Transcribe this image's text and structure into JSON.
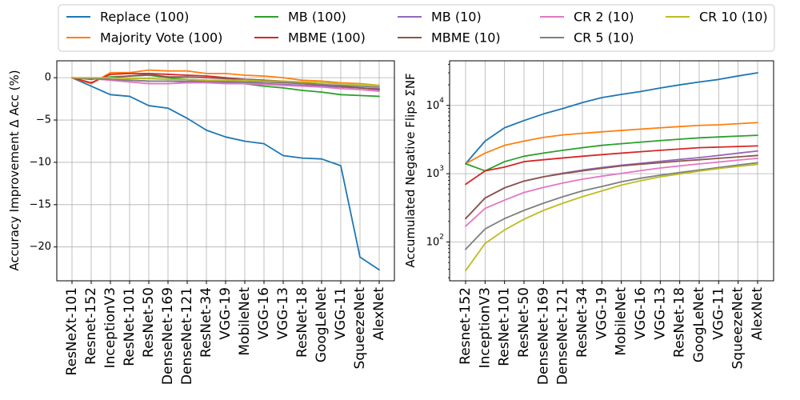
{
  "legend": [
    {
      "label": "Replace (100)",
      "color": "#1f77b4"
    },
    {
      "label": "Majority Vote (100)",
      "color": "#ff7f0e"
    },
    {
      "label": "MB (100)",
      "color": "#2ca02c"
    },
    {
      "label": "MBME (100)",
      "color": "#d62728"
    },
    {
      "label": "MB (10)",
      "color": "#9467bd"
    },
    {
      "label": "MBME (10)",
      "color": "#8c564b"
    },
    {
      "label": "CR 2 (10)",
      "color": "#e377c2"
    },
    {
      "label": "CR 5 (10)",
      "color": "#7f7f7f"
    },
    {
      "label": "CR 10 (10)",
      "color": "#bcbd22"
    }
  ],
  "chart_data": [
    {
      "type": "line",
      "ylabel": "Accuracy Improvement Δ Acc (%)",
      "xlabel": "",
      "ylim": [
        -24,
        2
      ],
      "yticks": [
        0,
        -5,
        -10,
        -15,
        -20
      ],
      "grid": true,
      "categories": [
        "ResNeXt-101",
        "Resnet-152",
        "InceptionV3",
        "ResNet-101",
        "ResNet-50",
        "DenseNet-169",
        "DenseNet-121",
        "ResNet-34",
        "VGG-19",
        "MobileNet",
        "VGG-16",
        "VGG-13",
        "ResNet-18",
        "GoogLeNet",
        "VGG-11",
        "SqueezeNet",
        "AlexNet"
      ],
      "series": [
        {
          "name": "Replace (100)",
          "values": [
            0,
            -1.0,
            -2.0,
            -2.2,
            -3.3,
            -3.6,
            -4.8,
            -6.2,
            -7.0,
            -7.5,
            -7.8,
            -9.2,
            -9.5,
            -9.6,
            -10.4,
            -21.2,
            -22.7
          ]
        },
        {
          "name": "Majority Vote (100)",
          "values": [
            0,
            -0.7,
            0.6,
            0.6,
            0.9,
            0.8,
            0.8,
            0.5,
            0.5,
            0.3,
            0.2,
            0.0,
            -0.3,
            -0.4,
            -0.6,
            -0.7,
            -0.9
          ]
        },
        {
          "name": "MB (100)",
          "values": [
            0,
            -0.2,
            0.1,
            0.2,
            0.3,
            0.0,
            -0.2,
            -0.3,
            -0.5,
            -0.7,
            -1.0,
            -1.2,
            -1.5,
            -1.7,
            -2.0,
            -2.1,
            -2.2
          ]
        },
        {
          "name": "MBME (100)",
          "values": [
            0,
            -0.6,
            0.4,
            0.5,
            0.5,
            0.4,
            0.3,
            0.2,
            0.0,
            -0.2,
            -0.3,
            -0.5,
            -0.7,
            -0.9,
            -1.1,
            -1.2,
            -1.4
          ]
        },
        {
          "name": "MB (10)",
          "values": [
            0,
            -0.1,
            -0.2,
            -0.3,
            -0.4,
            -0.4,
            -0.5,
            -0.5,
            -0.6,
            -0.6,
            -0.7,
            -0.8,
            -0.9,
            -1.0,
            -1.1,
            -1.2,
            -1.3
          ]
        },
        {
          "name": "MBME (10)",
          "values": [
            0,
            -0.1,
            0.0,
            0.2,
            0.4,
            0.1,
            0.1,
            0.0,
            -0.1,
            -0.2,
            -0.3,
            -0.4,
            -0.6,
            -0.8,
            -1.0,
            -1.2,
            -1.4
          ]
        },
        {
          "name": "CR 2 (10)",
          "values": [
            0,
            -0.1,
            -0.3,
            -0.5,
            -0.7,
            -0.7,
            -0.6,
            -0.6,
            -0.7,
            -0.7,
            -0.8,
            -0.9,
            -1.0,
            -1.1,
            -1.3,
            -1.4,
            -1.6
          ]
        },
        {
          "name": "CR 5 (10)",
          "values": [
            0,
            -0.1,
            -0.2,
            -0.3,
            -0.4,
            -0.4,
            -0.4,
            -0.4,
            -0.4,
            -0.5,
            -0.5,
            -0.6,
            -0.7,
            -0.8,
            -0.9,
            -1.0,
            -1.1
          ]
        },
        {
          "name": "CR 10 (10)",
          "values": [
            0,
            0.0,
            0.0,
            -0.1,
            -0.1,
            -0.2,
            -0.2,
            -0.3,
            -0.3,
            -0.3,
            -0.4,
            -0.4,
            -0.5,
            -0.6,
            -0.7,
            -0.8,
            -0.9
          ]
        }
      ]
    },
    {
      "type": "line",
      "ylabel": "Accumulated Negative Flips ΣNF",
      "xlabel": "",
      "yscale": "log",
      "ylim": [
        27,
        45000
      ],
      "yticks": [
        100,
        1000,
        10000
      ],
      "yticklabels": [
        {
          "base": "10",
          "exp": "2"
        },
        {
          "base": "10",
          "exp": "3"
        },
        {
          "base": "10",
          "exp": "4"
        }
      ],
      "grid": true,
      "categories": [
        "Resnet-152",
        "InceptionV3",
        "ResNet-101",
        "ResNet-50",
        "DenseNet-169",
        "DenseNet-121",
        "ResNet-34",
        "VGG-19",
        "MobileNet",
        "VGG-16",
        "VGG-13",
        "ResNet-18",
        "GoogLeNet",
        "VGG-11",
        "SqueezeNet",
        "AlexNet"
      ],
      "series": [
        {
          "name": "Replace (100)",
          "values": [
            1400,
            3000,
            4700,
            6000,
            7500,
            9000,
            11000,
            13000,
            14500,
            16000,
            18000,
            20000,
            22000,
            24000,
            27000,
            30000
          ]
        },
        {
          "name": "Majority Vote (100)",
          "values": [
            1400,
            2000,
            2600,
            3000,
            3400,
            3700,
            3900,
            4100,
            4300,
            4500,
            4700,
            4900,
            5100,
            5200,
            5400,
            5600
          ]
        },
        {
          "name": "MB (100)",
          "values": [
            1400,
            1100,
            1500,
            1800,
            2000,
            2200,
            2400,
            2600,
            2750,
            2900,
            3050,
            3200,
            3350,
            3450,
            3550,
            3650
          ]
        },
        {
          "name": "MBME (100)",
          "values": [
            700,
            1100,
            1250,
            1500,
            1600,
            1700,
            1800,
            1900,
            2000,
            2100,
            2200,
            2300,
            2400,
            2450,
            2500,
            2550
          ]
        },
        {
          "name": "MB (10)",
          "values": [
            220,
            440,
            620,
            780,
            900,
            1020,
            1130,
            1230,
            1330,
            1420,
            1520,
            1620,
            1720,
            1850,
            2000,
            2150
          ]
        },
        {
          "name": "MBME (10)",
          "values": [
            220,
            440,
            620,
            780,
            900,
            1000,
            1100,
            1200,
            1300,
            1380,
            1450,
            1530,
            1600,
            1680,
            1760,
            1850
          ]
        },
        {
          "name": "CR 2 (10)",
          "values": [
            170,
            310,
            410,
            530,
            630,
            730,
            830,
            920,
            1010,
            1110,
            1210,
            1300,
            1390,
            1480,
            1580,
            1680
          ]
        },
        {
          "name": "CR 5 (10)",
          "values": [
            78,
            155,
            220,
            290,
            370,
            460,
            560,
            650,
            760,
            860,
            950,
            1040,
            1130,
            1230,
            1340,
            1450
          ]
        },
        {
          "name": "CR 10 (10)",
          "values": [
            38,
            95,
            150,
            215,
            290,
            370,
            460,
            560,
            680,
            790,
            900,
            990,
            1090,
            1190,
            1280,
            1370
          ]
        }
      ]
    }
  ]
}
